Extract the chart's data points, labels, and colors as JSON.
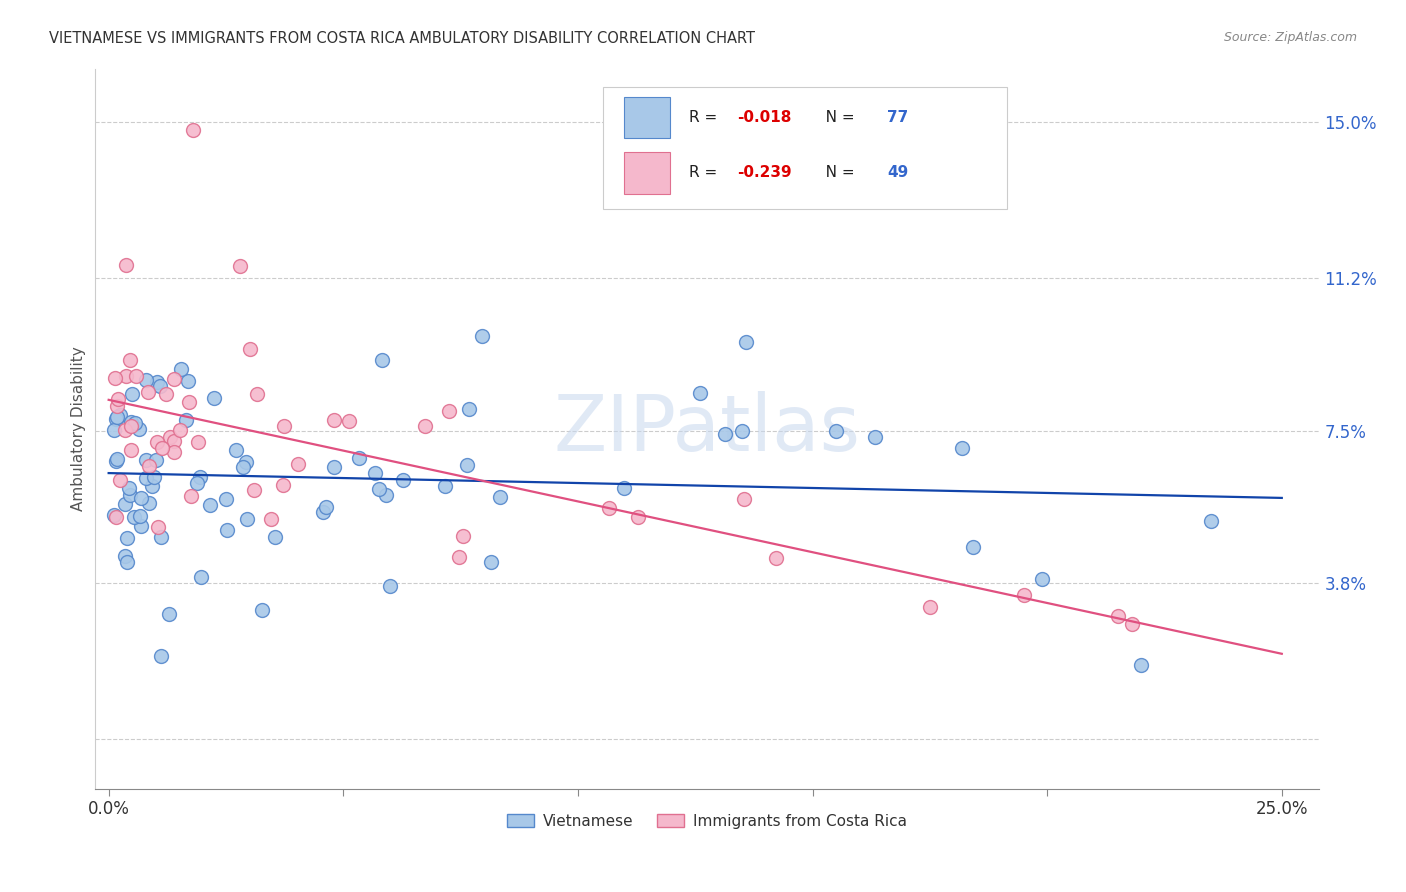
{
  "title": "VIETNAMESE VS IMMIGRANTS FROM COSTA RICA AMBULATORY DISABILITY CORRELATION CHART",
  "source": "Source: ZipAtlas.com",
  "ylabel": "Ambulatory Disability",
  "ytick_vals": [
    0.0,
    0.038,
    0.075,
    0.112,
    0.15
  ],
  "ytick_labels": [
    "",
    "3.8%",
    "7.5%",
    "11.2%",
    "15.0%"
  ],
  "xtick_labels": [
    "0.0%",
    "",
    "",
    "",
    "",
    "25.0%"
  ],
  "xlim": [
    -0.003,
    0.258
  ],
  "ylim": [
    -0.012,
    0.163
  ],
  "watermark": "ZIPatlas",
  "series1_label": "Vietnamese",
  "series1_face": "#a8c8e8",
  "series1_edge": "#5588cc",
  "series1_line": "#1144aa",
  "series1_R": "-0.018",
  "series1_N": "77",
  "series2_label": "Immigrants from Costa Rica",
  "series2_face": "#f5b8cc",
  "series2_edge": "#e07090",
  "series2_line": "#e05080",
  "series2_R": "-0.239",
  "series2_N": "49",
  "legend_R_color": "#dd0000",
  "legend_N_color": "#3366cc",
  "text_color_dark": "#333333",
  "source_color": "#888888",
  "grid_color": "#cccccc",
  "ytick_color": "#3366cc",
  "marker_size": 100
}
